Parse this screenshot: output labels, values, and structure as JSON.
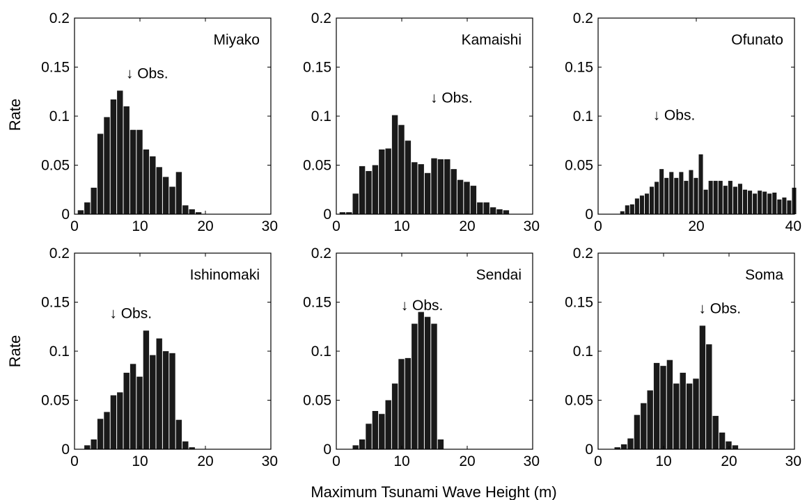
{
  "figure": {
    "xlabel": "Maximum Tsunami Wave Height (m)",
    "ylabel": "Rate",
    "bar_color": "#1a1a1a",
    "obs_marker": "↓ Obs."
  },
  "chart_data": [
    {
      "type": "bar",
      "title": "Miyako",
      "xlim": [
        0,
        30
      ],
      "ylim": [
        0,
        0.2
      ],
      "xticks": [
        "0",
        "10",
        "20",
        "30"
      ],
      "yticks": [
        "0",
        "0.05",
        "0.1",
        "0.15",
        "0.2"
      ],
      "bin_width": 1,
      "x": [
        1,
        2,
        3,
        4,
        5,
        6,
        7,
        8,
        9,
        10,
        11,
        12,
        13,
        14,
        15,
        16,
        17,
        18,
        19
      ],
      "values": [
        0.004,
        0.012,
        0.027,
        0.082,
        0.099,
        0.117,
        0.126,
        0.11,
        0.086,
        0.086,
        0.066,
        0.059,
        0.048,
        0.038,
        0.028,
        0.043,
        0.009,
        0.005,
        0.002
      ],
      "obs": 8.5
    },
    {
      "type": "bar",
      "title": "Kamaishi",
      "xlim": [
        0,
        30
      ],
      "ylim": [
        0,
        0.2
      ],
      "xticks": [
        "0",
        "10",
        "20",
        "30"
      ],
      "yticks": [
        "0",
        "0.05",
        "0.1",
        "0.15",
        "0.2"
      ],
      "bin_width": 1,
      "x": [
        1,
        2,
        3,
        4,
        5,
        6,
        7,
        8,
        9,
        10,
        11,
        12,
        13,
        14,
        15,
        16,
        17,
        18,
        19,
        20,
        21,
        22,
        23,
        24,
        25,
        26
      ],
      "values": [
        0.002,
        0.002,
        0.021,
        0.049,
        0.044,
        0.05,
        0.066,
        0.067,
        0.101,
        0.091,
        0.075,
        0.053,
        0.051,
        0.042,
        0.057,
        0.056,
        0.056,
        0.046,
        0.035,
        0.033,
        0.029,
        0.012,
        0.012,
        0.007,
        0.005,
        0.004
      ],
      "obs": 15
    },
    {
      "type": "bar",
      "title": "Ofunato",
      "xlim": [
        0,
        40
      ],
      "ylim": [
        0,
        0.2
      ],
      "xticks": [
        "0",
        "20",
        "40"
      ],
      "yticks": [
        "0",
        "0.05",
        "0.1",
        "0.15",
        "0.2"
      ],
      "bin_width": 1,
      "x": [
        5,
        6,
        7,
        8,
        9,
        10,
        11,
        12,
        13,
        14,
        15,
        16,
        17,
        18,
        19,
        20,
        21,
        22,
        23,
        24,
        25,
        26,
        27,
        28,
        29,
        30,
        31,
        32,
        33,
        34,
        35,
        36,
        37,
        38,
        39,
        40
      ],
      "values": [
        0.003,
        0.009,
        0.01,
        0.016,
        0.019,
        0.021,
        0.028,
        0.033,
        0.046,
        0.037,
        0.043,
        0.037,
        0.043,
        0.034,
        0.045,
        0.037,
        0.061,
        0.025,
        0.034,
        0.034,
        0.034,
        0.029,
        0.034,
        0.028,
        0.031,
        0.025,
        0.024,
        0.021,
        0.024,
        0.023,
        0.021,
        0.022,
        0.015,
        0.017,
        0.014,
        0.027
      ],
      "obs": 12
    },
    {
      "type": "bar",
      "title": "Ishinomaki",
      "xlim": [
        0,
        30
      ],
      "ylim": [
        0,
        0.2
      ],
      "xticks": [
        "0",
        "10",
        "20",
        "30"
      ],
      "yticks": [
        "0",
        "0.05",
        "0.1",
        "0.15",
        "0.2"
      ],
      "bin_width": 1,
      "x": [
        2,
        3,
        4,
        5,
        6,
        7,
        8,
        9,
        10,
        11,
        12,
        13,
        14,
        15,
        16,
        17,
        18
      ],
      "values": [
        0.004,
        0.01,
        0.031,
        0.038,
        0.055,
        0.058,
        0.078,
        0.087,
        0.074,
        0.121,
        0.096,
        0.113,
        0.1,
        0.098,
        0.03,
        0.008,
        0.002
      ],
      "obs": 6
    },
    {
      "type": "bar",
      "title": "Sendai",
      "xlim": [
        0,
        30
      ],
      "ylim": [
        0,
        0.2
      ],
      "xticks": [
        "0",
        "10",
        "20",
        "30"
      ],
      "yticks": [
        "0",
        "0.05",
        "0.1",
        "0.15",
        "0.2"
      ],
      "bin_width": 1,
      "x": [
        3,
        4,
        5,
        6,
        7,
        8,
        9,
        10,
        11,
        12,
        13,
        14,
        15,
        16
      ],
      "values": [
        0.004,
        0.01,
        0.026,
        0.039,
        0.036,
        0.05,
        0.067,
        0.092,
        0.093,
        0.128,
        0.14,
        0.135,
        0.128,
        0.01
      ],
      "obs": 10.5
    },
    {
      "type": "bar",
      "title": "Soma",
      "xlim": [
        0,
        30
      ],
      "ylim": [
        0,
        0.2
      ],
      "xticks": [
        "0",
        "10",
        "20",
        "30"
      ],
      "yticks": [
        "0",
        "0.05",
        "0.1",
        "0.15",
        "0.2"
      ],
      "bin_width": 1,
      "x": [
        3,
        4,
        5,
        6,
        7,
        8,
        9,
        10,
        11,
        12,
        13,
        14,
        15,
        16,
        17,
        18,
        19,
        20,
        21
      ],
      "values": [
        0.002,
        0.005,
        0.011,
        0.035,
        0.047,
        0.06,
        0.088,
        0.085,
        0.091,
        0.067,
        0.078,
        0.067,
        0.072,
        0.126,
        0.107,
        0.034,
        0.017,
        0.008,
        0.004
      ],
      "obs": 16
    }
  ]
}
